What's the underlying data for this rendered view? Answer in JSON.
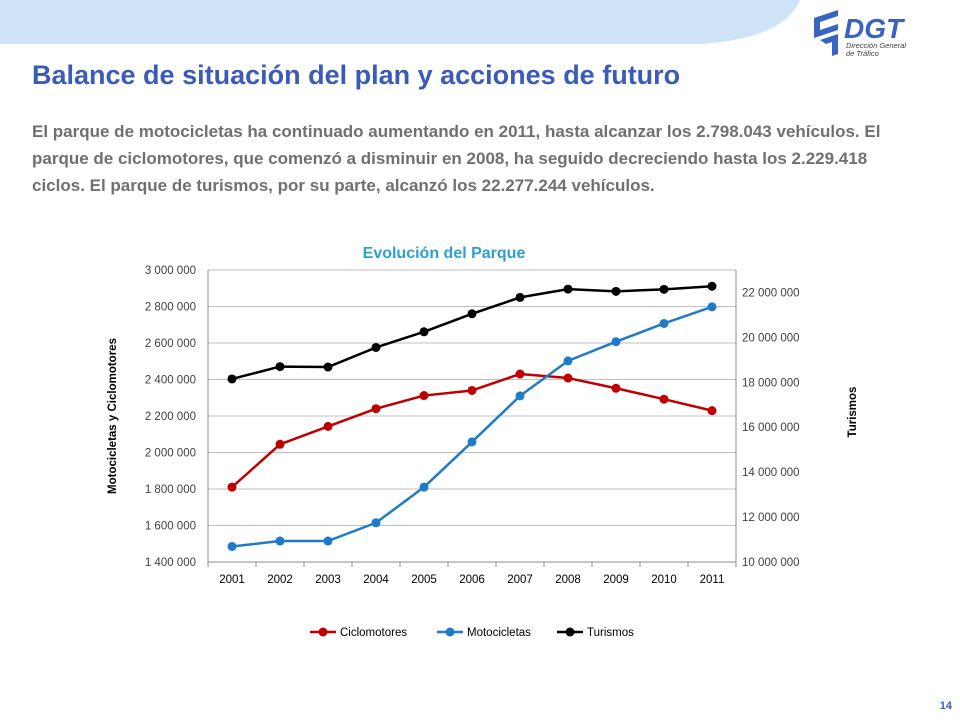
{
  "header": {
    "logo_text": "DGT",
    "logo_subtitle_line1": "Dirección General",
    "logo_subtitle_line2": "de Tráfico"
  },
  "page_title": "Balance de situación del plan y acciones de futuro",
  "intro_text": "El parque de motocicletas ha continuado aumentando en 2011, hasta alcanzar los 2.798.043 vehículos. El parque de ciclomotores, que comenzó a disminuir en 2008, ha seguido decreciendo hasta los 2.229.418 ciclos. El parque de turismos, por su parte, alcanzó los 22.277.244 vehículos.",
  "page_number": "14",
  "colors": {
    "title": "#3a5bb8",
    "chart_title": "#2e9fd0",
    "text": "#707070",
    "header_band": "#cfe3f7",
    "logo": "#3a62c0"
  },
  "chart_data": {
    "type": "line",
    "title": "Evolución del Parque",
    "categories": [
      "2001",
      "2002",
      "2003",
      "2004",
      "2005",
      "2006",
      "2007",
      "2008",
      "2009",
      "2010",
      "2011"
    ],
    "y_left": {
      "label": "Motocicletas y Ciclomotores",
      "range": [
        1400000,
        3000000
      ],
      "ticks": [
        {
          "value": 1400000,
          "label": "1 400 000"
        },
        {
          "value": 1600000,
          "label": "1 600 000"
        },
        {
          "value": 1800000,
          "label": "1 800 000"
        },
        {
          "value": 2000000,
          "label": "2 000 000"
        },
        {
          "value": 2200000,
          "label": "2 200 000"
        },
        {
          "value": 2400000,
          "label": "2 400 000"
        },
        {
          "value": 2600000,
          "label": "2 600 000"
        },
        {
          "value": 2800000,
          "label": "2 800 000"
        },
        {
          "value": 3000000,
          "label": "3 000 000"
        }
      ]
    },
    "y_right": {
      "label": "Turismos",
      "range": [
        10000000,
        23000000
      ],
      "ticks": [
        {
          "value": 10000000,
          "label": "10 000 000"
        },
        {
          "value": 12000000,
          "label": "12 000 000"
        },
        {
          "value": 14000000,
          "label": "14 000 000"
        },
        {
          "value": 16000000,
          "label": "16 000 000"
        },
        {
          "value": 18000000,
          "label": "18 000 000"
        },
        {
          "value": 20000000,
          "label": "20 000 000"
        },
        {
          "value": 22000000,
          "label": "22 000 000"
        }
      ]
    },
    "grid": true,
    "legend_position": "bottom",
    "series": [
      {
        "name": "Ciclomotores",
        "axis": "left",
        "color": "#c00000",
        "values": [
          1810000,
          2045000,
          2143000,
          2240000,
          2312000,
          2340000,
          2430000,
          2408000,
          2352000,
          2292000,
          2229418
        ]
      },
      {
        "name": "Motocicletas",
        "axis": "left",
        "color": "#1f7bc8",
        "values": [
          1485000,
          1515000,
          1515000,
          1615000,
          1810000,
          2058000,
          2310000,
          2502000,
          2607000,
          2707000,
          2798043
        ]
      },
      {
        "name": "Turismos",
        "axis": "right",
        "color": "#000000",
        "values": [
          18150000,
          18700000,
          18680000,
          19550000,
          20250000,
          21050000,
          21780000,
          22150000,
          22050000,
          22140000,
          22277244
        ]
      }
    ]
  }
}
